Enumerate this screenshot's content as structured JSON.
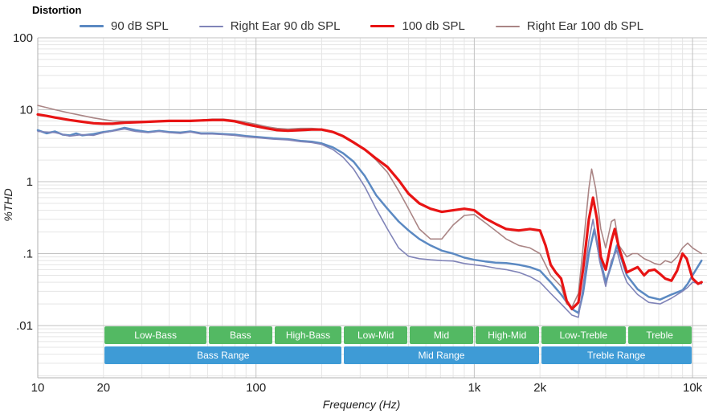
{
  "chart": {
    "title": "Distortion",
    "xlabel": "Frequency (Hz)",
    "ylabel": "%THD",
    "x_ticks": [
      {
        "v": 10,
        "label": "10"
      },
      {
        "v": 20,
        "label": "20"
      },
      {
        "v": 100,
        "label": "100"
      },
      {
        "v": 1000,
        "label": "1k"
      },
      {
        "v": 2000,
        "label": "2k"
      },
      {
        "v": 10000,
        "label": "10k"
      }
    ],
    "y_ticks": [
      {
        "v": 100,
        "label": "100"
      },
      {
        "v": 10,
        "label": "10"
      },
      {
        "v": 1,
        "label": "1"
      },
      {
        "v": 0.1,
        "label": ".1"
      },
      {
        "v": 0.01,
        "label": ".01"
      }
    ],
    "grid": {
      "major": "#c2c2c2",
      "minor": "#e5e5e5",
      "axis": "#b0b0b0",
      "tick_text": "#222"
    }
  },
  "chart_data": {
    "type": "line",
    "x_scale": "log",
    "y_scale": "log",
    "xlim": [
      10,
      11640
    ],
    "ylim": [
      0.00188,
      100
    ],
    "grid": true,
    "legend_position": "top",
    "series": [
      {
        "name": "90 dB SPL",
        "color": "#5b89c2",
        "width": 2.5,
        "points": [
          [
            10,
            5.2
          ],
          [
            11,
            4.7
          ],
          [
            12,
            5.0
          ],
          [
            13,
            4.5
          ],
          [
            14,
            4.4
          ],
          [
            15,
            4.7
          ],
          [
            16,
            4.4
          ],
          [
            18,
            4.6
          ],
          [
            20,
            4.9
          ],
          [
            22,
            5.1
          ],
          [
            25,
            5.6
          ],
          [
            28,
            5.2
          ],
          [
            32,
            4.9
          ],
          [
            36,
            5.1
          ],
          [
            40,
            4.9
          ],
          [
            45,
            4.8
          ],
          [
            50,
            5.0
          ],
          [
            56,
            4.7
          ],
          [
            63,
            4.7
          ],
          [
            71,
            4.6
          ],
          [
            80,
            4.5
          ],
          [
            90,
            4.3
          ],
          [
            100,
            4.2
          ],
          [
            120,
            4.0
          ],
          [
            140,
            3.9
          ],
          [
            160,
            3.7
          ],
          [
            180,
            3.6
          ],
          [
            200,
            3.4
          ],
          [
            225,
            3.0
          ],
          [
            250,
            2.5
          ],
          [
            280,
            1.9
          ],
          [
            315,
            1.2
          ],
          [
            355,
            0.65
          ],
          [
            400,
            0.42
          ],
          [
            450,
            0.28
          ],
          [
            500,
            0.21
          ],
          [
            560,
            0.16
          ],
          [
            630,
            0.13
          ],
          [
            710,
            0.11
          ],
          [
            800,
            0.1
          ],
          [
            900,
            0.088
          ],
          [
            1000,
            0.082
          ],
          [
            1120,
            0.078
          ],
          [
            1250,
            0.075
          ],
          [
            1400,
            0.074
          ],
          [
            1600,
            0.07
          ],
          [
            1800,
            0.065
          ],
          [
            2000,
            0.058
          ],
          [
            2240,
            0.04
          ],
          [
            2500,
            0.027
          ],
          [
            2800,
            0.017
          ],
          [
            3000,
            0.015
          ],
          [
            3150,
            0.028
          ],
          [
            3350,
            0.1
          ],
          [
            3550,
            0.22
          ],
          [
            3750,
            0.09
          ],
          [
            4000,
            0.04
          ],
          [
            4250,
            0.07
          ],
          [
            4500,
            0.13
          ],
          [
            4750,
            0.08
          ],
          [
            5000,
            0.05
          ],
          [
            5600,
            0.032
          ],
          [
            6300,
            0.025
          ],
          [
            7100,
            0.023
          ],
          [
            8000,
            0.027
          ],
          [
            9000,
            0.031
          ],
          [
            9500,
            0.038
          ],
          [
            10000,
            0.05
          ],
          [
            11000,
            0.08
          ]
        ]
      },
      {
        "name": "Right Ear 90 db SPL",
        "color": "#8084b8",
        "width": 1.6,
        "points": [
          [
            10,
            5.0
          ],
          [
            12,
            4.8
          ],
          [
            14,
            4.3
          ],
          [
            16,
            4.5
          ],
          [
            18,
            4.4
          ],
          [
            20,
            4.8
          ],
          [
            25,
            5.4
          ],
          [
            28,
            5.0
          ],
          [
            32,
            4.8
          ],
          [
            36,
            5.0
          ],
          [
            40,
            4.8
          ],
          [
            45,
            4.7
          ],
          [
            50,
            4.9
          ],
          [
            56,
            4.6
          ],
          [
            63,
            4.6
          ],
          [
            71,
            4.5
          ],
          [
            80,
            4.4
          ],
          [
            90,
            4.2
          ],
          [
            100,
            4.1
          ],
          [
            120,
            3.9
          ],
          [
            140,
            3.8
          ],
          [
            160,
            3.6
          ],
          [
            180,
            3.5
          ],
          [
            200,
            3.3
          ],
          [
            225,
            2.8
          ],
          [
            250,
            2.2
          ],
          [
            280,
            1.5
          ],
          [
            315,
            0.85
          ],
          [
            355,
            0.42
          ],
          [
            400,
            0.22
          ],
          [
            450,
            0.12
          ],
          [
            500,
            0.092
          ],
          [
            560,
            0.085
          ],
          [
            630,
            0.082
          ],
          [
            710,
            0.08
          ],
          [
            800,
            0.079
          ],
          [
            900,
            0.073
          ],
          [
            1000,
            0.07
          ],
          [
            1120,
            0.067
          ],
          [
            1250,
            0.063
          ],
          [
            1400,
            0.06
          ],
          [
            1600,
            0.055
          ],
          [
            1800,
            0.048
          ],
          [
            2000,
            0.04
          ],
          [
            2240,
            0.028
          ],
          [
            2500,
            0.02
          ],
          [
            2800,
            0.014
          ],
          [
            3000,
            0.013
          ],
          [
            3150,
            0.035
          ],
          [
            3350,
            0.15
          ],
          [
            3500,
            0.3
          ],
          [
            3750,
            0.08
          ],
          [
            4000,
            0.035
          ],
          [
            4250,
            0.08
          ],
          [
            4500,
            0.11
          ],
          [
            4750,
            0.06
          ],
          [
            5000,
            0.04
          ],
          [
            5600,
            0.027
          ],
          [
            6300,
            0.021
          ],
          [
            7100,
            0.02
          ],
          [
            8000,
            0.024
          ],
          [
            9000,
            0.03
          ],
          [
            9500,
            0.034
          ],
          [
            10000,
            0.04
          ],
          [
            11000,
            0.038
          ]
        ]
      },
      {
        "name": "100 db SPL",
        "color": "#e81414",
        "width": 3.2,
        "points": [
          [
            10,
            8.6
          ],
          [
            11,
            8.2
          ],
          [
            12,
            7.8
          ],
          [
            14,
            7.2
          ],
          [
            16,
            6.8
          ],
          [
            18,
            6.5
          ],
          [
            20,
            6.4
          ],
          [
            22,
            6.4
          ],
          [
            25,
            6.6
          ],
          [
            28,
            6.7
          ],
          [
            32,
            6.8
          ],
          [
            36,
            6.9
          ],
          [
            40,
            7.0
          ],
          [
            45,
            7.0
          ],
          [
            50,
            7.0
          ],
          [
            56,
            7.1
          ],
          [
            63,
            7.2
          ],
          [
            71,
            7.2
          ],
          [
            80,
            6.9
          ],
          [
            90,
            6.3
          ],
          [
            100,
            5.9
          ],
          [
            112,
            5.5
          ],
          [
            125,
            5.2
          ],
          [
            140,
            5.1
          ],
          [
            160,
            5.2
          ],
          [
            180,
            5.3
          ],
          [
            200,
            5.3
          ],
          [
            225,
            4.9
          ],
          [
            250,
            4.3
          ],
          [
            280,
            3.5
          ],
          [
            315,
            2.8
          ],
          [
            355,
            2.1
          ],
          [
            400,
            1.6
          ],
          [
            450,
            1.05
          ],
          [
            500,
            0.68
          ],
          [
            560,
            0.5
          ],
          [
            630,
            0.42
          ],
          [
            710,
            0.38
          ],
          [
            800,
            0.4
          ],
          [
            900,
            0.42
          ],
          [
            1000,
            0.4
          ],
          [
            1120,
            0.31
          ],
          [
            1250,
            0.26
          ],
          [
            1400,
            0.22
          ],
          [
            1600,
            0.21
          ],
          [
            1800,
            0.22
          ],
          [
            2000,
            0.21
          ],
          [
            2120,
            0.13
          ],
          [
            2240,
            0.07
          ],
          [
            2360,
            0.055
          ],
          [
            2500,
            0.045
          ],
          [
            2650,
            0.022
          ],
          [
            2800,
            0.017
          ],
          [
            3000,
            0.021
          ],
          [
            3150,
            0.06
          ],
          [
            3350,
            0.3
          ],
          [
            3500,
            0.6
          ],
          [
            3650,
            0.3
          ],
          [
            3800,
            0.09
          ],
          [
            4000,
            0.06
          ],
          [
            4250,
            0.15
          ],
          [
            4400,
            0.22
          ],
          [
            4600,
            0.12
          ],
          [
            5000,
            0.055
          ],
          [
            5300,
            0.06
          ],
          [
            5600,
            0.065
          ],
          [
            6000,
            0.05
          ],
          [
            6300,
            0.058
          ],
          [
            6700,
            0.06
          ],
          [
            7100,
            0.052
          ],
          [
            7500,
            0.045
          ],
          [
            8000,
            0.042
          ],
          [
            8500,
            0.058
          ],
          [
            9000,
            0.1
          ],
          [
            9400,
            0.085
          ],
          [
            10000,
            0.045
          ],
          [
            10600,
            0.038
          ],
          [
            11000,
            0.04
          ]
        ]
      },
      {
        "name": "Right Ear 100 db SPL",
        "color": "#aa8585",
        "width": 1.6,
        "points": [
          [
            10,
            11.5
          ],
          [
            11,
            10.7
          ],
          [
            12,
            10.0
          ],
          [
            14,
            9.0
          ],
          [
            16,
            8.3
          ],
          [
            18,
            7.7
          ],
          [
            20,
            7.3
          ],
          [
            22,
            7.0
          ],
          [
            25,
            6.9
          ],
          [
            28,
            6.9
          ],
          [
            32,
            6.9
          ],
          [
            36,
            7.0
          ],
          [
            40,
            7.0
          ],
          [
            45,
            7.1
          ],
          [
            50,
            7.1
          ],
          [
            56,
            7.2
          ],
          [
            63,
            7.4
          ],
          [
            71,
            7.4
          ],
          [
            80,
            7.1
          ],
          [
            90,
            6.7
          ],
          [
            100,
            6.3
          ],
          [
            112,
            5.8
          ],
          [
            125,
            5.5
          ],
          [
            140,
            5.4
          ],
          [
            160,
            5.5
          ],
          [
            180,
            5.5
          ],
          [
            200,
            5.4
          ],
          [
            225,
            5.0
          ],
          [
            250,
            4.4
          ],
          [
            280,
            3.6
          ],
          [
            315,
            2.8
          ],
          [
            355,
            2.0
          ],
          [
            400,
            1.35
          ],
          [
            450,
            0.75
          ],
          [
            500,
            0.42
          ],
          [
            560,
            0.22
          ],
          [
            630,
            0.16
          ],
          [
            710,
            0.16
          ],
          [
            800,
            0.25
          ],
          [
            900,
            0.34
          ],
          [
            1000,
            0.35
          ],
          [
            1120,
            0.27
          ],
          [
            1250,
            0.21
          ],
          [
            1400,
            0.16
          ],
          [
            1600,
            0.13
          ],
          [
            1800,
            0.12
          ],
          [
            2000,
            0.1
          ],
          [
            2120,
            0.07
          ],
          [
            2240,
            0.05
          ],
          [
            2500,
            0.035
          ],
          [
            2650,
            0.02
          ],
          [
            2800,
            0.018
          ],
          [
            3000,
            0.028
          ],
          [
            3150,
            0.12
          ],
          [
            3350,
            0.8
          ],
          [
            3450,
            1.5
          ],
          [
            3600,
            0.8
          ],
          [
            3800,
            0.22
          ],
          [
            4000,
            0.12
          ],
          [
            4250,
            0.28
          ],
          [
            4400,
            0.3
          ],
          [
            4600,
            0.13
          ],
          [
            5000,
            0.09
          ],
          [
            5300,
            0.1
          ],
          [
            5600,
            0.1
          ],
          [
            6000,
            0.085
          ],
          [
            6300,
            0.08
          ],
          [
            6700,
            0.073
          ],
          [
            7100,
            0.07
          ],
          [
            7500,
            0.08
          ],
          [
            8000,
            0.075
          ],
          [
            8500,
            0.09
          ],
          [
            9000,
            0.12
          ],
          [
            9500,
            0.14
          ],
          [
            10000,
            0.12
          ],
          [
            11000,
            0.1
          ]
        ]
      }
    ],
    "bands": {
      "sub": {
        "color": "#53b963",
        "items": [
          {
            "label": "Low-Bass",
            "from": 20,
            "to": 60
          },
          {
            "label": "Bass",
            "from": 60,
            "to": 120
          },
          {
            "label": "High-Bass",
            "from": 120,
            "to": 250
          },
          {
            "label": "Low-Mid",
            "from": 250,
            "to": 500
          },
          {
            "label": "Mid",
            "from": 500,
            "to": 1000
          },
          {
            "label": "High-Mid",
            "from": 1000,
            "to": 2000
          },
          {
            "label": "Low-Treble",
            "from": 2000,
            "to": 5000
          },
          {
            "label": "Treble",
            "from": 5000,
            "to": 10000
          }
        ]
      },
      "main": {
        "color": "#3e9bd6",
        "items": [
          {
            "label": "Bass Range",
            "from": 20,
            "to": 250
          },
          {
            "label": "Mid Range",
            "from": 250,
            "to": 2000
          },
          {
            "label": "Treble Range",
            "from": 2000,
            "to": 10000
          }
        ]
      }
    }
  }
}
